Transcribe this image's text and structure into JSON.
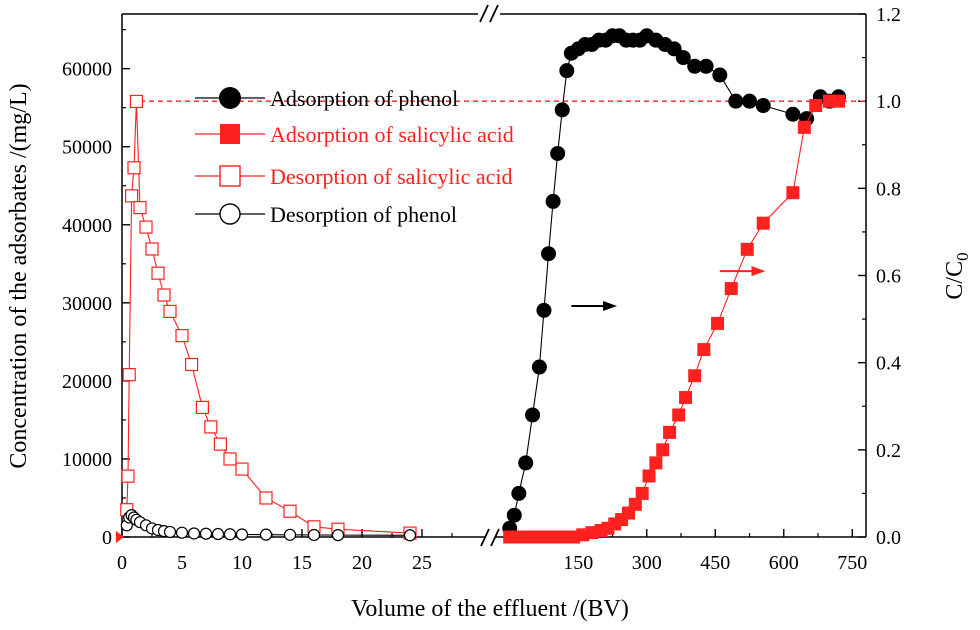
{
  "chart_data": {
    "type": "scatter",
    "colors": {
      "phenol": "#000000",
      "salicylic": "#ff2020",
      "reference": "#ff2020"
    },
    "xlabel": "Volume of the effluent /(BV)",
    "ylabel_left": "Concentration of  the adsorbates /(mg/L)",
    "ylabel_right": "C/C",
    "ylabel_right_sub": "0",
    "left_axis": {
      "xlim": [
        0,
        29
      ],
      "ylim": [
        0,
        67000
      ],
      "xticks": [
        "0",
        "5",
        "10",
        "15",
        "20",
        "25"
      ],
      "yticks": [
        "0",
        "10000",
        "20000",
        "30000",
        "40000",
        "50000",
        "60000"
      ]
    },
    "right_axis": {
      "xlim": [
        -30,
        780
      ],
      "ylim": [
        0,
        1.2
      ],
      "xticks": [
        "150",
        "300",
        "450",
        "600",
        "750"
      ],
      "yticks": [
        "0.0",
        "0.2",
        "0.4",
        "0.6",
        "0.8",
        "1.0",
        "1.2"
      ],
      "reference_line": 1.0
    },
    "legend": [
      {
        "label": "Adsorption of phenol",
        "marker": "filled-circle",
        "color": "#000000"
      },
      {
        "label": "Adsorption of salicylic acid",
        "marker": "filled-square",
        "color": "#ff2020"
      },
      {
        "label": "Desorption of salicylic acid",
        "marker": "open-square",
        "color": "#ff2020"
      },
      {
        "label": "Desorption of phenol",
        "marker": "open-circle",
        "color": "#000000"
      }
    ],
    "series": [
      {
        "name": "Desorption of salicylic acid",
        "axis": "left",
        "marker": "open-square",
        "color": "#ff2020",
        "x": [
          0.4,
          0.5,
          0.6,
          0.8,
          1.0,
          1.2,
          1.5,
          2.0,
          2.5,
          3.0,
          3.5,
          4.0,
          5.0,
          5.8,
          6.7,
          7.4,
          8.2,
          9.0,
          10.0,
          12.0,
          14.0,
          16.0,
          18.0,
          24.0
        ],
        "y": [
          3500,
          7800,
          20800,
          43700,
          47300,
          55800,
          42200,
          39700,
          36900,
          33800,
          31000,
          28900,
          25800,
          22100,
          16600,
          14100,
          11900,
          10000,
          8700,
          5000,
          3300,
          1300,
          1000,
          500
        ]
      },
      {
        "name": "Desorption of phenol",
        "axis": "left",
        "marker": "open-circle",
        "color": "#000000",
        "x": [
          0.4,
          0.6,
          0.8,
          1.0,
          1.2,
          1.5,
          2.0,
          2.5,
          3.0,
          3.5,
          4.0,
          5.0,
          6.0,
          7.0,
          8.0,
          9.0,
          10.0,
          12.0,
          14.0,
          16.0,
          18.0,
          24.0
        ],
        "y": [
          1500,
          2500,
          2800,
          2500,
          2200,
          1900,
          1500,
          1100,
          900,
          750,
          650,
          550,
          450,
          420,
          380,
          350,
          320,
          300,
          280,
          260,
          240,
          220
        ]
      },
      {
        "name": "Adsorption of phenol",
        "axis": "right",
        "marker": "filled-circle",
        "color": "#000000",
        "x": [
          0,
          10,
          20,
          35,
          50,
          65,
          75,
          85,
          95,
          105,
          115,
          125,
          135,
          150,
          165,
          180,
          195,
          210,
          225,
          240,
          255,
          270,
          285,
          300,
          320,
          340,
          360,
          380,
          405,
          430,
          460,
          495,
          525,
          555,
          620,
          650,
          680,
          700,
          720
        ],
        "y": [
          0.02,
          0.05,
          0.1,
          0.17,
          0.28,
          0.39,
          0.52,
          0.65,
          0.77,
          0.88,
          0.98,
          1.07,
          1.11,
          1.12,
          1.13,
          1.13,
          1.14,
          1.14,
          1.15,
          1.15,
          1.14,
          1.14,
          1.14,
          1.15,
          1.14,
          1.13,
          1.12,
          1.1,
          1.08,
          1.08,
          1.06,
          1.0,
          1.0,
          0.99,
          0.97,
          0.96,
          1.01,
          1.0,
          1.01
        ]
      },
      {
        "name": "Adsorption of salicylic acid",
        "axis": "right",
        "marker": "filled-square",
        "color": "#ff2020",
        "x": [
          0,
          20,
          40,
          60,
          80,
          100,
          120,
          140,
          160,
          180,
          200,
          215,
          230,
          245,
          260,
          275,
          290,
          305,
          320,
          335,
          350,
          370,
          385,
          405,
          425,
          455,
          485,
          520,
          555,
          620,
          645,
          670,
          700,
          720
        ],
        "y": [
          0,
          0,
          0,
          0,
          0,
          0,
          0,
          0,
          0.005,
          0.01,
          0.015,
          0.02,
          0.03,
          0.04,
          0.055,
          0.075,
          0.1,
          0.14,
          0.17,
          0.2,
          0.24,
          0.28,
          0.32,
          0.37,
          0.43,
          0.49,
          0.57,
          0.66,
          0.72,
          0.79,
          0.94,
          0.99,
          1.0,
          1.0
        ]
      }
    ],
    "annotations": [
      {
        "type": "arrow",
        "color": "#000000",
        "from": [
          135,
          0.53
        ],
        "to": [
          235,
          0.53
        ]
      },
      {
        "type": "arrow",
        "color": "#ff2020",
        "from": [
          460,
          0.61
        ],
        "to": [
          560,
          0.61
        ]
      }
    ]
  }
}
